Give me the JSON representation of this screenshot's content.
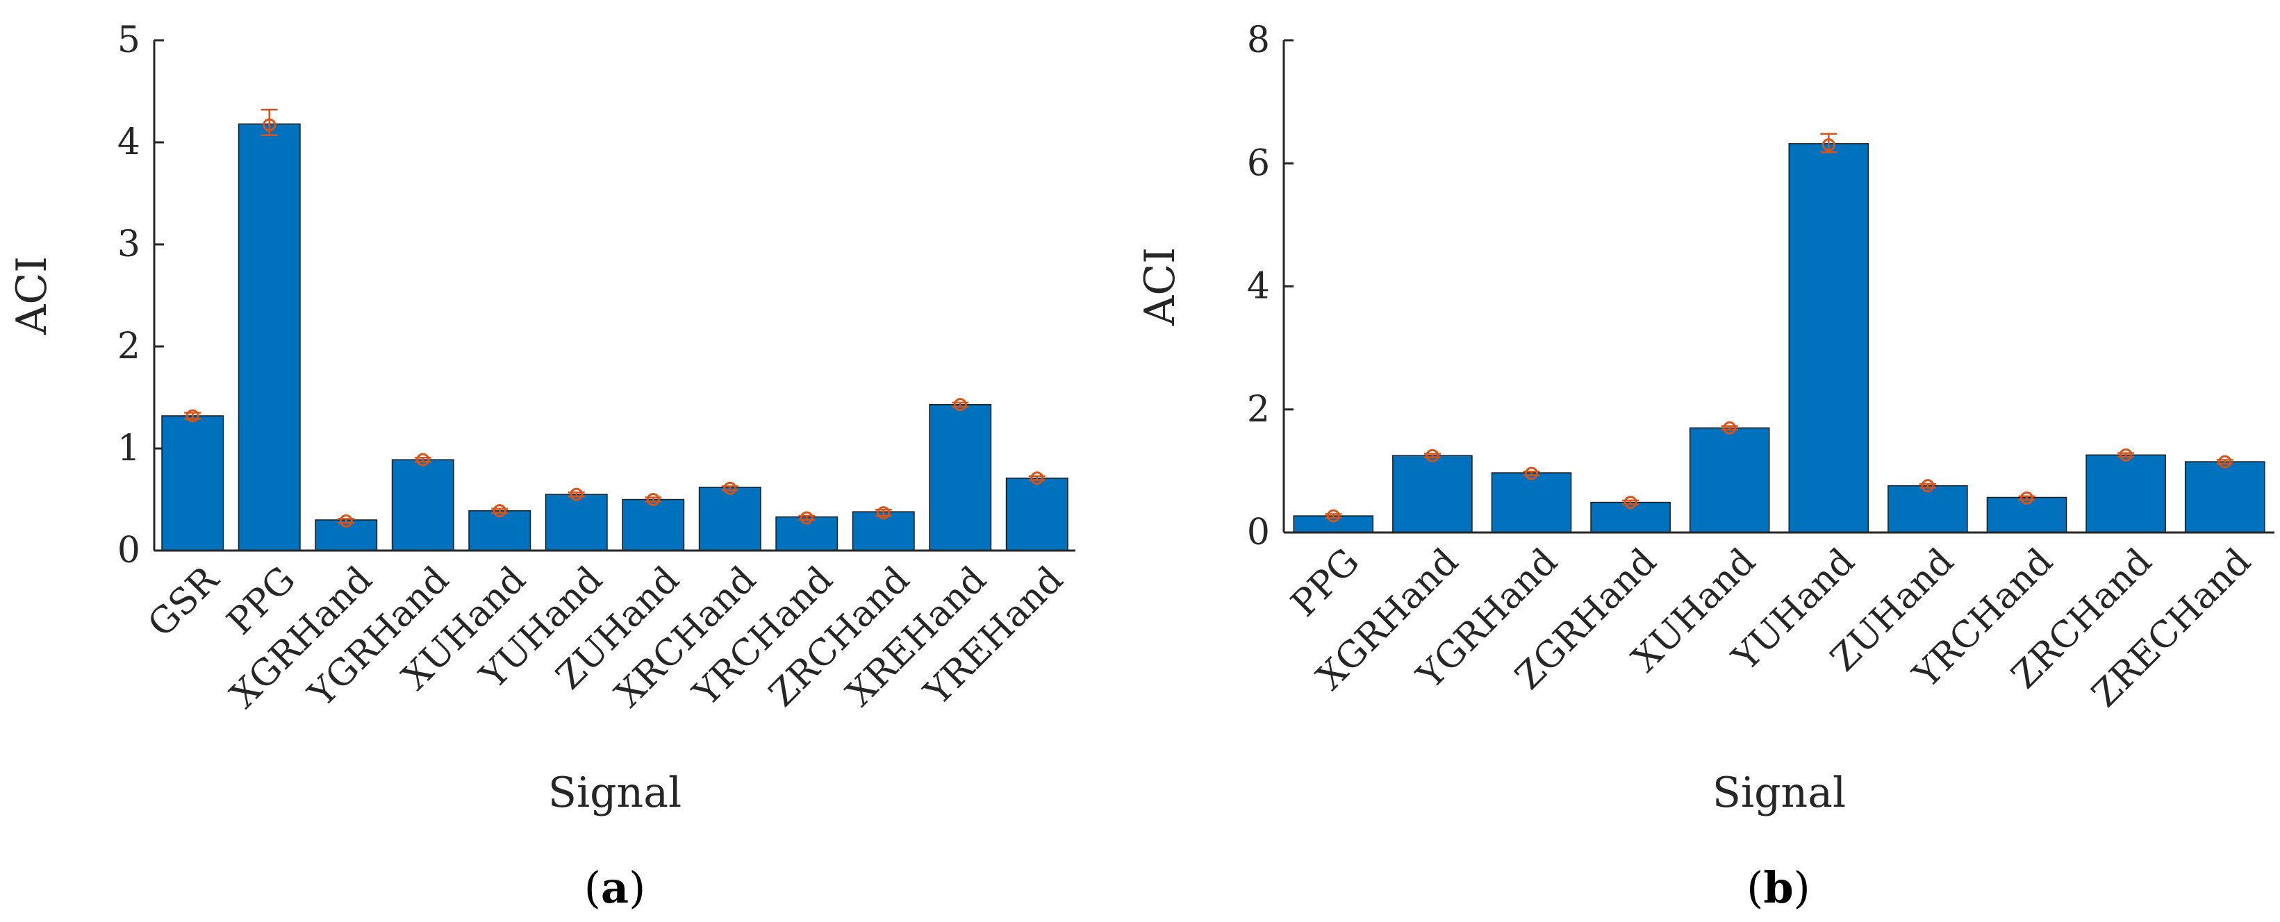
{
  "colors": {
    "bar": "#0072BD",
    "bar_edge": "#1a1a1a",
    "error": "#D95319",
    "axis": "#262626"
  },
  "chart_data": [
    {
      "type": "bar",
      "panel_label": "a",
      "categories": [
        "GSR",
        "PPG",
        "XGRHand",
        "YGRHand",
        "XUHand",
        "YUHand",
        "ZUHand",
        "XRCHand",
        "YRCHand",
        "ZRCHand",
        "XREHand",
        "YREHand"
      ],
      "values": [
        1.32,
        4.18,
        0.3,
        0.89,
        0.39,
        0.55,
        0.5,
        0.62,
        0.33,
        0.38,
        1.43,
        0.71
      ],
      "error_center": [
        1.32,
        4.17,
        0.29,
        0.89,
        0.39,
        0.55,
        0.5,
        0.61,
        0.32,
        0.37,
        1.43,
        0.71
      ],
      "error_plus": [
        0.03,
        0.15,
        0.02,
        0.02,
        0.02,
        0.02,
        0.02,
        0.02,
        0.02,
        0.03,
        0.02,
        0.02
      ],
      "error_minus": [
        0.03,
        0.1,
        0.02,
        0.02,
        0.02,
        0.02,
        0.02,
        0.02,
        0.02,
        0.03,
        0.02,
        0.02
      ],
      "ylim": [
        0,
        5
      ],
      "yticks": [
        "0",
        "1",
        "2",
        "3",
        "4",
        "5"
      ],
      "xlabel": "Signal",
      "ylabel": "ACI",
      "grid": false
    },
    {
      "type": "bar",
      "panel_label": "b",
      "categories": [
        "PPG",
        "XGRHand",
        "YGRHand",
        "ZGRHand",
        "XUHand",
        "YUHand",
        "ZUHand",
        "YRCHand",
        "ZRCHand",
        "ZRECHand"
      ],
      "values": [
        0.27,
        1.25,
        0.97,
        0.49,
        1.7,
        6.32,
        0.76,
        0.57,
        1.26,
        1.15
      ],
      "error_center": [
        0.27,
        1.25,
        0.96,
        0.49,
        1.7,
        6.3,
        0.76,
        0.56,
        1.26,
        1.15
      ],
      "error_plus": [
        0.03,
        0.03,
        0.03,
        0.03,
        0.03,
        0.18,
        0.03,
        0.03,
        0.03,
        0.03
      ],
      "error_minus": [
        0.03,
        0.03,
        0.03,
        0.03,
        0.03,
        0.12,
        0.03,
        0.03,
        0.03,
        0.03
      ],
      "ylim": [
        0,
        8
      ],
      "yticks": [
        "0",
        "2",
        "4",
        "6",
        "8"
      ],
      "xlabel": "Signal",
      "ylabel": "ACI",
      "grid": false
    }
  ]
}
